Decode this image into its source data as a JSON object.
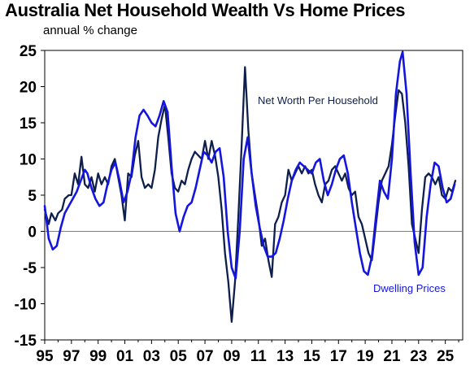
{
  "chart_data": {
    "type": "line",
    "title": "Australia Net Household Wealth Vs Home Prices",
    "subtitle": "annual % change",
    "ylim": [
      -15,
      25
    ],
    "yticks": [
      25,
      20,
      15,
      10,
      5,
      0,
      -5,
      -10,
      -15
    ],
    "xlim": [
      1995,
      2026.3
    ],
    "xticks": [
      {
        "label": "95",
        "x": 1995
      },
      {
        "label": "97",
        "x": 1997
      },
      {
        "label": "99",
        "x": 1999
      },
      {
        "label": "01",
        "x": 2001
      },
      {
        "label": "03",
        "x": 2003
      },
      {
        "label": "05",
        "x": 2005
      },
      {
        "label": "07",
        "x": 2007
      },
      {
        "label": "09",
        "x": 2009
      },
      {
        "label": "11",
        "x": 2011
      },
      {
        "label": "13",
        "x": 2013
      },
      {
        "label": "15",
        "x": 2015
      },
      {
        "label": "17",
        "x": 2017
      },
      {
        "label": "19",
        "x": 2019
      },
      {
        "label": "21",
        "x": 2021
      },
      {
        "label": "23",
        "x": 2023
      },
      {
        "label": "25",
        "x": 2025
      }
    ],
    "annotations": [
      {
        "text": "Net Worth Per Household",
        "series": 0
      },
      {
        "text": "Dwelling Prices",
        "series": 1
      }
    ],
    "series": [
      {
        "name": "Net Worth Per Household",
        "color": "#0d1f4a",
        "points": [
          [
            1995.0,
            3.0
          ],
          [
            1995.3,
            1.0
          ],
          [
            1995.5,
            2.5
          ],
          [
            1995.8,
            1.5
          ],
          [
            1996.0,
            2.5
          ],
          [
            1996.3,
            3.0
          ],
          [
            1996.5,
            4.5
          ],
          [
            1996.8,
            5.0
          ],
          [
            1997.0,
            5.0
          ],
          [
            1997.25,
            8.0
          ],
          [
            1997.5,
            6.5
          ],
          [
            1997.75,
            10.3
          ],
          [
            1998.0,
            6.5
          ],
          [
            1998.25,
            6.0
          ],
          [
            1998.5,
            7.5
          ],
          [
            1998.75,
            5.5
          ],
          [
            1999.0,
            8.0
          ],
          [
            1999.25,
            6.5
          ],
          [
            1999.5,
            7.5
          ],
          [
            1999.75,
            6.5
          ],
          [
            2000.0,
            9.0
          ],
          [
            2000.25,
            10.0
          ],
          [
            2000.5,
            7.5
          ],
          [
            2000.75,
            5.0
          ],
          [
            2001.0,
            1.5
          ],
          [
            2001.25,
            8.0
          ],
          [
            2001.5,
            7.5
          ],
          [
            2001.75,
            10.5
          ],
          [
            2002.0,
            12.5
          ],
          [
            2002.25,
            7.5
          ],
          [
            2002.5,
            6.0
          ],
          [
            2002.75,
            6.5
          ],
          [
            2003.0,
            6.0
          ],
          [
            2003.25,
            8.5
          ],
          [
            2003.5,
            13.0
          ],
          [
            2003.75,
            15.5
          ],
          [
            2004.0,
            17.5
          ],
          [
            2004.25,
            13.0
          ],
          [
            2004.5,
            8.0
          ],
          [
            2004.75,
            6.0
          ],
          [
            2005.0,
            5.5
          ],
          [
            2005.25,
            7.0
          ],
          [
            2005.5,
            6.5
          ],
          [
            2005.75,
            8.5
          ],
          [
            2006.0,
            10.0
          ],
          [
            2006.25,
            11.0
          ],
          [
            2006.5,
            10.5
          ],
          [
            2006.75,
            10.0
          ],
          [
            2007.0,
            12.5
          ],
          [
            2007.25,
            10.0
          ],
          [
            2007.5,
            12.5
          ],
          [
            2007.75,
            10.5
          ],
          [
            2008.0,
            7.5
          ],
          [
            2008.25,
            3.0
          ],
          [
            2008.5,
            -3.0
          ],
          [
            2008.75,
            -7.0
          ],
          [
            2009.0,
            -12.5
          ],
          [
            2009.25,
            -7.0
          ],
          [
            2009.5,
            2.0
          ],
          [
            2009.75,
            12.0
          ],
          [
            2010.0,
            22.7
          ],
          [
            2010.25,
            14.0
          ],
          [
            2010.5,
            8.0
          ],
          [
            2010.75,
            5.0
          ],
          [
            2011.0,
            2.0
          ],
          [
            2011.25,
            -2.0
          ],
          [
            2011.5,
            -1.0
          ],
          [
            2011.75,
            -4.0
          ],
          [
            2012.0,
            -6.3
          ],
          [
            2012.25,
            1.0
          ],
          [
            2012.5,
            2.0
          ],
          [
            2012.75,
            4.0
          ],
          [
            2013.0,
            5.0
          ],
          [
            2013.25,
            8.5
          ],
          [
            2013.5,
            7.0
          ],
          [
            2013.75,
            8.0
          ],
          [
            2014.0,
            9.0
          ],
          [
            2014.25,
            8.0
          ],
          [
            2014.5,
            9.0
          ],
          [
            2014.75,
            8.0
          ],
          [
            2015.0,
            8.5
          ],
          [
            2015.25,
            6.5
          ],
          [
            2015.5,
            5.0
          ],
          [
            2015.75,
            4.0
          ],
          [
            2016.0,
            6.5
          ],
          [
            2016.25,
            7.0
          ],
          [
            2016.5,
            8.5
          ],
          [
            2016.75,
            9.0
          ],
          [
            2017.0,
            8.0
          ],
          [
            2017.25,
            7.0
          ],
          [
            2017.5,
            8.0
          ],
          [
            2017.75,
            6.0
          ],
          [
            2018.0,
            5.0
          ],
          [
            2018.25,
            5.5
          ],
          [
            2018.5,
            2.0
          ],
          [
            2018.75,
            1.0
          ],
          [
            2019.0,
            -1.0
          ],
          [
            2019.25,
            -3.0
          ],
          [
            2019.5,
            -4.0
          ],
          [
            2019.75,
            0.0
          ],
          [
            2020.0,
            4.0
          ],
          [
            2020.25,
            7.0
          ],
          [
            2020.5,
            8.0
          ],
          [
            2020.75,
            9.0
          ],
          [
            2021.0,
            12.0
          ],
          [
            2021.25,
            16.0
          ],
          [
            2021.5,
            19.5
          ],
          [
            2021.75,
            19.0
          ],
          [
            2022.0,
            15.0
          ],
          [
            2022.25,
            9.0
          ],
          [
            2022.5,
            1.0
          ],
          [
            2022.75,
            -1.0
          ],
          [
            2023.0,
            -3.0
          ],
          [
            2023.25,
            3.0
          ],
          [
            2023.5,
            7.5
          ],
          [
            2023.75,
            8.0
          ],
          [
            2024.0,
            7.5
          ],
          [
            2024.25,
            6.5
          ],
          [
            2024.5,
            7.5
          ],
          [
            2024.75,
            5.0
          ],
          [
            2025.0,
            4.5
          ],
          [
            2025.25,
            6.0
          ],
          [
            2025.5,
            5.5
          ],
          [
            2025.75,
            7.0
          ]
        ]
      },
      {
        "name": "Dwelling Prices",
        "color": "#1515e0",
        "points": [
          [
            1995.0,
            3.5
          ],
          [
            1995.3,
            -1.0
          ],
          [
            1995.6,
            -2.5
          ],
          [
            1995.9,
            -2.0
          ],
          [
            1996.2,
            0.5
          ],
          [
            1996.5,
            2.5
          ],
          [
            1996.8,
            3.5
          ],
          [
            1997.1,
            4.5
          ],
          [
            1997.4,
            5.5
          ],
          [
            1997.7,
            7.0
          ],
          [
            1998.0,
            8.5
          ],
          [
            1998.2,
            8.0
          ],
          [
            1998.5,
            6.0
          ],
          [
            1998.8,
            4.5
          ],
          [
            1999.1,
            3.5
          ],
          [
            1999.4,
            4.0
          ],
          [
            1999.7,
            6.5
          ],
          [
            2000.0,
            8.5
          ],
          [
            2000.3,
            9.5
          ],
          [
            2000.6,
            7.0
          ],
          [
            2000.9,
            4.0
          ],
          [
            2001.2,
            5.5
          ],
          [
            2001.5,
            8.0
          ],
          [
            2001.8,
            13.0
          ],
          [
            2002.1,
            16.0
          ],
          [
            2002.4,
            16.8
          ],
          [
            2002.7,
            16.0
          ],
          [
            2003.0,
            15.0
          ],
          [
            2003.3,
            14.5
          ],
          [
            2003.6,
            16.0
          ],
          [
            2003.9,
            18.0
          ],
          [
            2004.2,
            16.5
          ],
          [
            2004.5,
            9.0
          ],
          [
            2004.8,
            2.5
          ],
          [
            2005.1,
            0.0
          ],
          [
            2005.4,
            2.0
          ],
          [
            2005.7,
            3.5
          ],
          [
            2006.0,
            4.0
          ],
          [
            2006.3,
            6.0
          ],
          [
            2006.6,
            8.5
          ],
          [
            2006.9,
            11.0
          ],
          [
            2007.2,
            10.5
          ],
          [
            2007.5,
            9.5
          ],
          [
            2007.8,
            11.0
          ],
          [
            2008.1,
            11.5
          ],
          [
            2008.4,
            7.5
          ],
          [
            2008.7,
            0.0
          ],
          [
            2009.0,
            -5.0
          ],
          [
            2009.3,
            -6.5
          ],
          [
            2009.6,
            0.0
          ],
          [
            2009.9,
            10.0
          ],
          [
            2010.2,
            13.0
          ],
          [
            2010.5,
            8.0
          ],
          [
            2010.8,
            3.5
          ],
          [
            2011.1,
            0.5
          ],
          [
            2011.4,
            -2.0
          ],
          [
            2011.7,
            -3.5
          ],
          [
            2012.0,
            -3.5
          ],
          [
            2012.3,
            -3.0
          ],
          [
            2012.6,
            -1.0
          ],
          [
            2012.9,
            1.5
          ],
          [
            2013.2,
            4.5
          ],
          [
            2013.5,
            7.0
          ],
          [
            2013.8,
            8.5
          ],
          [
            2014.1,
            9.5
          ],
          [
            2014.4,
            9.0
          ],
          [
            2014.7,
            8.5
          ],
          [
            2015.0,
            8.0
          ],
          [
            2015.3,
            9.5
          ],
          [
            2015.6,
            10.0
          ],
          [
            2015.9,
            7.0
          ],
          [
            2016.2,
            5.0
          ],
          [
            2016.5,
            6.5
          ],
          [
            2016.8,
            8.5
          ],
          [
            2017.1,
            10.0
          ],
          [
            2017.4,
            10.5
          ],
          [
            2017.7,
            8.0
          ],
          [
            2018.0,
            4.0
          ],
          [
            2018.3,
            0.5
          ],
          [
            2018.6,
            -3.0
          ],
          [
            2018.9,
            -5.5
          ],
          [
            2019.2,
            -6.0
          ],
          [
            2019.5,
            -3.5
          ],
          [
            2019.8,
            2.0
          ],
          [
            2020.1,
            7.0
          ],
          [
            2020.4,
            5.5
          ],
          [
            2020.7,
            4.5
          ],
          [
            2021.0,
            10.0
          ],
          [
            2021.3,
            19.0
          ],
          [
            2021.6,
            23.5
          ],
          [
            2021.8,
            24.8
          ],
          [
            2022.1,
            19.0
          ],
          [
            2022.4,
            8.0
          ],
          [
            2022.7,
            -1.5
          ],
          [
            2023.0,
            -6.0
          ],
          [
            2023.3,
            -5.0
          ],
          [
            2023.6,
            2.0
          ],
          [
            2023.9,
            6.5
          ],
          [
            2024.2,
            9.5
          ],
          [
            2024.5,
            9.0
          ],
          [
            2024.8,
            6.0
          ],
          [
            2025.1,
            4.0
          ],
          [
            2025.4,
            4.5
          ],
          [
            2025.7,
            6.5
          ]
        ]
      }
    ]
  }
}
